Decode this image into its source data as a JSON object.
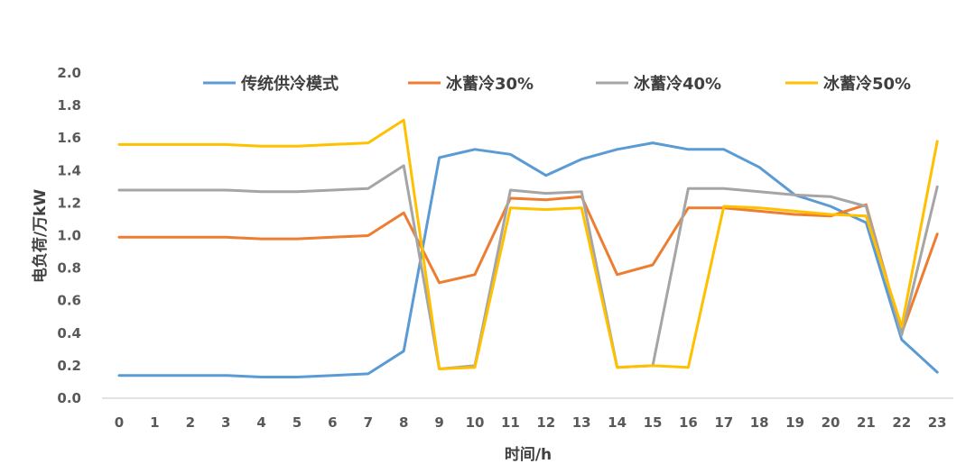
{
  "chart_data": {
    "type": "line",
    "xlabel": "时间/h",
    "ylabel": "电负荷/万kW",
    "ylim": [
      0,
      2.0
    ],
    "yticks": [
      "0.0",
      "0.2",
      "0.4",
      "0.6",
      "0.8",
      "1.0",
      "1.2",
      "1.4",
      "1.6",
      "1.8",
      "2.0"
    ],
    "categories": [
      "0",
      "1",
      "2",
      "3",
      "4",
      "5",
      "6",
      "7",
      "8",
      "9",
      "10",
      "11",
      "12",
      "13",
      "14",
      "15",
      "16",
      "17",
      "18",
      "19",
      "20",
      "21",
      "22",
      "23"
    ],
    "legend_position": "top",
    "grid": false,
    "series": [
      {
        "name": "传统供冷模式",
        "color": "#5B9BD5",
        "values": [
          0.14,
          0.14,
          0.14,
          0.14,
          0.13,
          0.13,
          0.14,
          0.15,
          0.29,
          1.48,
          1.53,
          1.5,
          1.37,
          1.47,
          1.53,
          1.57,
          1.53,
          1.53,
          1.42,
          1.25,
          1.18,
          1.08,
          0.36,
          0.16
        ]
      },
      {
        "name": "冰蓄冷30%",
        "color": "#ED7D31",
        "values": [
          0.99,
          0.99,
          0.99,
          0.99,
          0.98,
          0.98,
          0.99,
          1.0,
          1.14,
          0.71,
          0.76,
          1.23,
          1.22,
          1.24,
          0.76,
          0.82,
          1.17,
          1.17,
          1.15,
          1.13,
          1.12,
          1.19,
          0.4,
          1.01
        ]
      },
      {
        "name": "冰蓄冷40%",
        "color": "#A5A5A5",
        "values": [
          1.28,
          1.28,
          1.28,
          1.28,
          1.27,
          1.27,
          1.28,
          1.29,
          1.43,
          0.18,
          0.2,
          1.28,
          1.26,
          1.27,
          0.19,
          0.2,
          1.29,
          1.29,
          1.27,
          1.25,
          1.24,
          1.18,
          0.39,
          1.3
        ]
      },
      {
        "name": "冰蓄冷50%",
        "color": "#FFC000",
        "values": [
          1.56,
          1.56,
          1.56,
          1.56,
          1.55,
          1.55,
          1.56,
          1.57,
          1.71,
          0.18,
          0.19,
          1.17,
          1.16,
          1.17,
          0.19,
          0.2,
          0.19,
          1.18,
          1.17,
          1.15,
          1.13,
          1.12,
          0.44,
          1.58
        ]
      }
    ]
  }
}
